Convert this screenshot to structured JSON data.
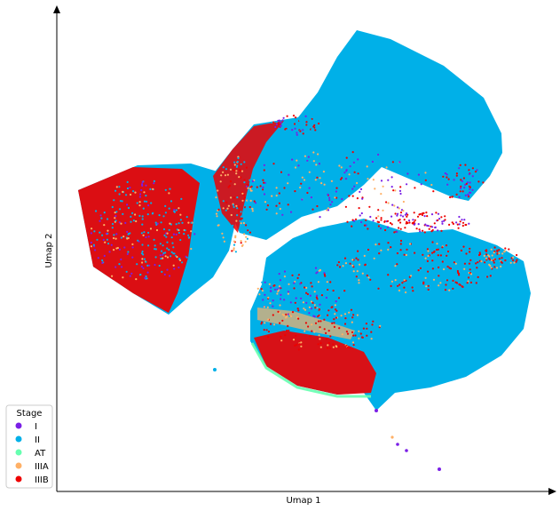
{
  "chart_data": {
    "type": "scatter",
    "title": "",
    "xlabel": "Umap 1",
    "ylabel": "Umap 2",
    "grid": false,
    "ticks": false,
    "legend": {
      "title": "Stage",
      "placement": "bottom-left",
      "entries": [
        {
          "name": "I",
          "color": "#7a1fe6"
        },
        {
          "name": "II",
          "color": "#00b0e8"
        },
        {
          "name": "AT",
          "color": "#66ffb0"
        },
        {
          "name": "IIIA",
          "color": "#ffb066"
        },
        {
          "name": "IIIB",
          "color": "#ee0000"
        }
      ]
    },
    "series": [
      {
        "name": "I",
        "color": "#7a1fe6"
      },
      {
        "name": "II",
        "color": "#00b0e8"
      },
      {
        "name": "AT",
        "color": "#66ffb0"
      },
      {
        "name": "IIIA",
        "color": "#ffb066"
      },
      {
        "name": "IIIB",
        "color": "#ee0000"
      }
    ]
  }
}
